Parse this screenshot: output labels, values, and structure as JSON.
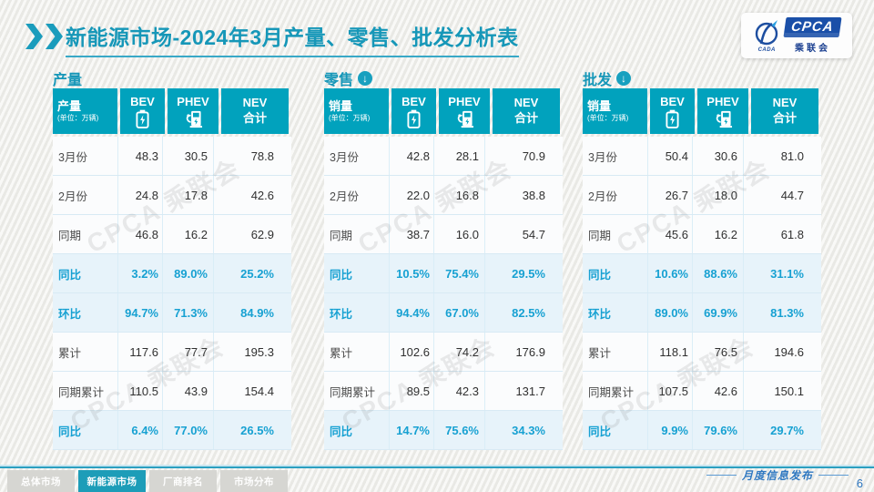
{
  "header": {
    "title_bold": "新能源市场",
    "title_rest": "-2024年3月产量、零售、批发分析表",
    "logo": {
      "cpca": "CPCA",
      "sub": "乘联会",
      "cada": "CADA"
    }
  },
  "watermark": "CPCA 乘联会",
  "tables": [
    {
      "section_title": "产量",
      "has_arrow": false,
      "label_header": "产量",
      "label_unit": "(单位：万辆)",
      "col_headers": {
        "bev": "BEV",
        "phev": "PHEV",
        "nev_line1": "NEV",
        "nev_line2": "合计"
      },
      "rows": [
        {
          "label": "3月份",
          "values": [
            "48.3",
            "30.5",
            "78.8"
          ],
          "highlight": false
        },
        {
          "label": "2月份",
          "values": [
            "24.8",
            "17.8",
            "42.6"
          ],
          "highlight": false
        },
        {
          "label": "同期",
          "values": [
            "46.8",
            "16.2",
            "62.9"
          ],
          "highlight": false
        },
        {
          "label": "同比",
          "values": [
            "3.2%",
            "89.0%",
            "25.2%"
          ],
          "highlight": true
        },
        {
          "label": "环比",
          "values": [
            "94.7%",
            "71.3%",
            "84.9%"
          ],
          "highlight": true
        },
        {
          "label": "累计",
          "values": [
            "117.6",
            "77.7",
            "195.3"
          ],
          "highlight": false
        },
        {
          "label": "同期累计",
          "values": [
            "110.5",
            "43.9",
            "154.4"
          ],
          "highlight": false
        },
        {
          "label": "同比",
          "values": [
            "6.4%",
            "77.0%",
            "26.5%"
          ],
          "highlight": true
        }
      ]
    },
    {
      "section_title": "零售",
      "has_arrow": true,
      "label_header": "销量",
      "label_unit": "(单位：万辆)",
      "col_headers": {
        "bev": "BEV",
        "phev": "PHEV",
        "nev_line1": "NEV",
        "nev_line2": "合计"
      },
      "rows": [
        {
          "label": "3月份",
          "values": [
            "42.8",
            "28.1",
            "70.9"
          ],
          "highlight": false
        },
        {
          "label": "2月份",
          "values": [
            "22.0",
            "16.8",
            "38.8"
          ],
          "highlight": false
        },
        {
          "label": "同期",
          "values": [
            "38.7",
            "16.0",
            "54.7"
          ],
          "highlight": false
        },
        {
          "label": "同比",
          "values": [
            "10.5%",
            "75.4%",
            "29.5%"
          ],
          "highlight": true
        },
        {
          "label": "环比",
          "values": [
            "94.4%",
            "67.0%",
            "82.5%"
          ],
          "highlight": true
        },
        {
          "label": "累计",
          "values": [
            "102.6",
            "74.2",
            "176.9"
          ],
          "highlight": false
        },
        {
          "label": "同期累计",
          "values": [
            "89.5",
            "42.3",
            "131.7"
          ],
          "highlight": false
        },
        {
          "label": "同比",
          "values": [
            "14.7%",
            "75.6%",
            "34.3%"
          ],
          "highlight": true
        }
      ]
    },
    {
      "section_title": "批发",
      "has_arrow": true,
      "label_header": "销量",
      "label_unit": "(单位：万辆)",
      "col_headers": {
        "bev": "BEV",
        "phev": "PHEV",
        "nev_line1": "NEV",
        "nev_line2": "合计"
      },
      "rows": [
        {
          "label": "3月份",
          "values": [
            "50.4",
            "30.6",
            "81.0"
          ],
          "highlight": false
        },
        {
          "label": "2月份",
          "values": [
            "26.7",
            "18.0",
            "44.7"
          ],
          "highlight": false
        },
        {
          "label": "同期",
          "values": [
            "45.6",
            "16.2",
            "61.8"
          ],
          "highlight": false
        },
        {
          "label": "同比",
          "values": [
            "10.6%",
            "88.6%",
            "31.1%"
          ],
          "highlight": true
        },
        {
          "label": "环比",
          "values": [
            "89.0%",
            "69.9%",
            "81.3%"
          ],
          "highlight": true
        },
        {
          "label": "累计",
          "values": [
            "118.1",
            "76.5",
            "194.6"
          ],
          "highlight": false
        },
        {
          "label": "同期累计",
          "values": [
            "107.5",
            "42.6",
            "150.1"
          ],
          "highlight": false
        },
        {
          "label": "同比",
          "values": [
            "9.9%",
            "79.6%",
            "29.7%"
          ],
          "highlight": true
        }
      ]
    }
  ],
  "footer": {
    "tabs": [
      {
        "label": "总体市场",
        "active": false
      },
      {
        "label": "新能源市场",
        "active": true
      },
      {
        "label": "厂商排名",
        "active": false
      },
      {
        "label": "市场分布",
        "active": false
      }
    ],
    "publish_label": "月度信息发布",
    "page_number": "6"
  },
  "colors": {
    "accent_teal": "#01a2bd",
    "title_teal": "#1697b8",
    "highlight_bg": "#e7f3fa",
    "highlight_text": "#17a1d2",
    "footer_blue": "#2e77c0",
    "logo_blue": "#1a4fa8"
  }
}
